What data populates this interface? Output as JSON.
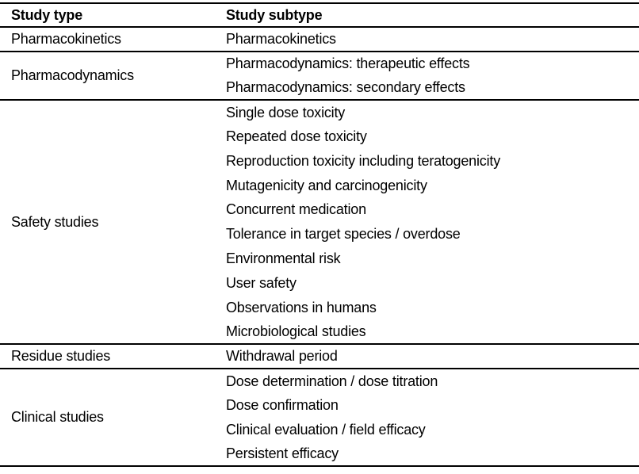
{
  "table": {
    "columns": [
      "Study type",
      "Study subtype"
    ],
    "groups": [
      {
        "type": "Pharmacokinetics",
        "subtypes": [
          "Pharmacokinetics"
        ]
      },
      {
        "type": "Pharmacodynamics",
        "subtypes": [
          "Pharmacodynamics: therapeutic effects",
          "Pharmacodynamics: secondary effects"
        ]
      },
      {
        "type": "Safety studies",
        "subtypes": [
          "Single dose toxicity",
          "Repeated dose toxicity",
          "Reproduction toxicity including teratogenicity",
          "Mutagenicity and carcinogenicity",
          "Concurrent medication",
          "Tolerance in target species / overdose",
          "Environmental risk",
          "User safety",
          "Observations in humans",
          "Microbiological studies"
        ]
      },
      {
        "type": "Residue studies",
        "subtypes": [
          "Withdrawal period"
        ]
      },
      {
        "type": "Clinical studies",
        "subtypes": [
          "Dose determination / dose titration",
          "Dose confirmation",
          "Clinical evaluation / field efficacy",
          "Persistent efficacy"
        ]
      }
    ],
    "colors": {
      "text": "#000000",
      "border": "#000000",
      "background": "#ffffff"
    }
  }
}
